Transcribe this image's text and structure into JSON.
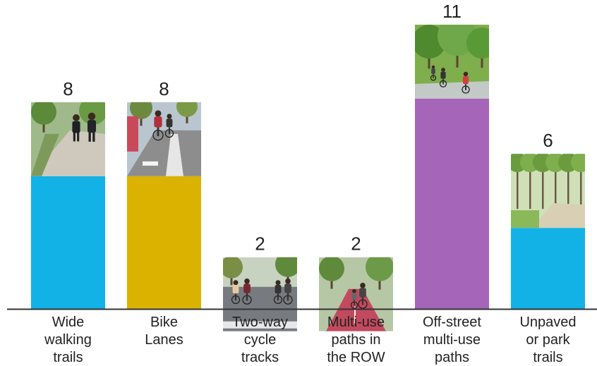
{
  "chart_data": {
    "type": "bar",
    "title": "",
    "xlabel": "",
    "ylabel": "",
    "ylim": [
      0,
      11
    ],
    "grid": false,
    "legend": "none",
    "categories": [
      [
        "Wide",
        "walking",
        "trails"
      ],
      [
        "Bike",
        "Lanes"
      ],
      [
        "Two-way",
        "cycle",
        "tracks"
      ],
      [
        "Multi-use",
        "paths in",
        "the ROW"
      ],
      [
        "Off-street",
        "multi-use",
        "paths"
      ],
      [
        "Unpaved",
        "or park",
        "trails"
      ]
    ],
    "values": [
      8,
      8,
      2,
      2,
      11,
      6
    ],
    "value_labels": [
      "8",
      "8",
      "2",
      "2",
      "11",
      "6"
    ],
    "bar_colors": [
      "#12b2e6",
      "#dcb200",
      "#8cc63f",
      "#e23a62",
      "#a565b8",
      "#12b2e6"
    ],
    "photo_scenes": [
      "sidewalk-walkers",
      "bike-lane-riders",
      "cycle-track-riders",
      "painted-path-rider",
      "park-path-riders",
      "tree-lined-trail"
    ]
  }
}
